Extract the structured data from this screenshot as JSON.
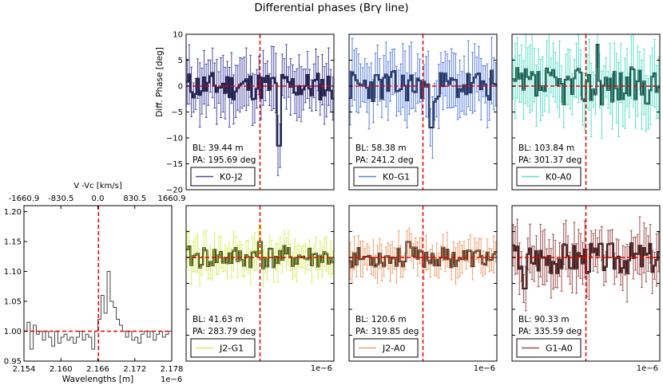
{
  "figure": {
    "title": "Differential phases (Brγ line)"
  },
  "chart_data": [
    {
      "type": "line",
      "id": "spectrum",
      "xlabel": "Wavelengths [m]",
      "x_offset_label": "1e−6",
      "top_axis_label": "V -Vc [km/s]",
      "xlim": [
        2.154,
        2.178
      ],
      "ylim": [
        0.95,
        1.21
      ],
      "xticks": [
        "2.154",
        "2.160",
        "2.166",
        "2.172",
        "2.178"
      ],
      "yticks": [
        "0.95",
        "1.00",
        "1.05",
        "1.10",
        "1.15",
        "1.20"
      ],
      "top_ticks": [
        "-1660.9",
        "-830.5",
        "0.0",
        "830.5",
        "1660.9"
      ],
      "line_center": 2.1661,
      "continuum": 1.0,
      "x": [
        2.154,
        2.1545,
        2.155,
        2.1555,
        2.156,
        2.1565,
        2.157,
        2.1575,
        2.158,
        2.1585,
        2.159,
        2.1595,
        2.16,
        2.1605,
        2.161,
        2.1615,
        2.162,
        2.1625,
        2.163,
        2.1635,
        2.164,
        2.1645,
        2.165,
        2.1655,
        2.166,
        2.1665,
        2.167,
        2.1675,
        2.168,
        2.1685,
        2.169,
        2.1695,
        2.17,
        2.1705,
        2.171,
        2.1715,
        2.172,
        2.1725,
        2.173,
        2.1735,
        2.174,
        2.1745,
        2.175,
        2.1755,
        2.176,
        2.1765,
        2.177,
        2.1775,
        2.178
      ],
      "y": [
        1.0,
        1.015,
        0.97,
        1.01,
        0.995,
        1.0,
        0.985,
        1.0,
        0.99,
        0.975,
        1.0,
        0.98,
        0.99,
        0.995,
        0.985,
        0.99,
        0.98,
        0.99,
        1.0,
        0.985,
        0.995,
        0.99,
        0.97,
        1.0,
        1.02,
        1.06,
        1.03,
        1.1,
        1.05,
        1.04,
        1.02,
        1.01,
        1.0,
        0.99,
        1.0,
        0.985,
        0.99,
        0.98,
        0.995,
        1.0,
        0.99,
        1.0,
        0.985,
        0.995,
        1.0,
        0.99,
        0.995,
        1.0,
        0.995
      ]
    },
    {
      "type": "line",
      "id": "K0-J2",
      "legend": "K0-J2",
      "bl": "BL: 39.44 m",
      "pa": "PA: 195.69 deg",
      "ylabel": "Diff. Phase [deg]",
      "ylim": [
        -20,
        10
      ],
      "yticks": [
        "10",
        "5",
        "0",
        "−5",
        "−10",
        "−15",
        "−20"
      ],
      "color": "#4b4ba8",
      "seed": 11,
      "noise": 2.0,
      "err": 4.5,
      "spike_pos": 0.63,
      "spike_val": -11.5
    },
    {
      "type": "line",
      "id": "K0-G1",
      "legend": "K0-G1",
      "bl": "BL: 58.38 m",
      "pa": "PA: 241.2 deg",
      "ylim": [
        -20,
        10
      ],
      "color": "#5a7fe0",
      "seed": 23,
      "noise": 2.2,
      "err": 4.8,
      "spike_pos": 0.56,
      "spike_val": -8
    },
    {
      "type": "line",
      "id": "K0-A0",
      "legend": "K0-A0",
      "bl": "BL: 103.84 m",
      "pa": "PA: 301.37 deg",
      "ylim": [
        -20,
        10
      ],
      "color": "#59e0c8",
      "seed": 37,
      "noise": 2.6,
      "err": 5.5,
      "spike_pos": 0.58,
      "spike_val": 8
    },
    {
      "type": "line",
      "id": "J2-G1",
      "legend": "J2-G1",
      "bl": "BL: 41.63 m",
      "pa": "PA: 283.79 deg",
      "ylim": [
        -20,
        10
      ],
      "color": "#d8f060",
      "seed": 41,
      "noise": 1.6,
      "err": 2.8,
      "spike_pos": 0.5,
      "spike_val": 3
    },
    {
      "type": "line",
      "id": "J2-A0",
      "legend": "J2-A0",
      "bl": "BL: 120.6 m",
      "pa": "PA: 319.85 deg",
      "ylim": [
        -20,
        10
      ],
      "color": "#f0a070",
      "seed": 53,
      "noise": 1.4,
      "err": 2.6,
      "spike_pos": 0.4,
      "spike_val": 3
    },
    {
      "type": "line",
      "id": "G1-A0",
      "legend": "G1-A0",
      "bl": "BL: 90.33 m",
      "pa": "PA: 335.59 deg",
      "ylim": [
        -20,
        10
      ],
      "color": "#a05050",
      "seed": 67,
      "noise": 2.2,
      "err": 4.0,
      "spike_pos": 0.08,
      "spike_val": -6
    }
  ],
  "offset_label": "1e−6"
}
